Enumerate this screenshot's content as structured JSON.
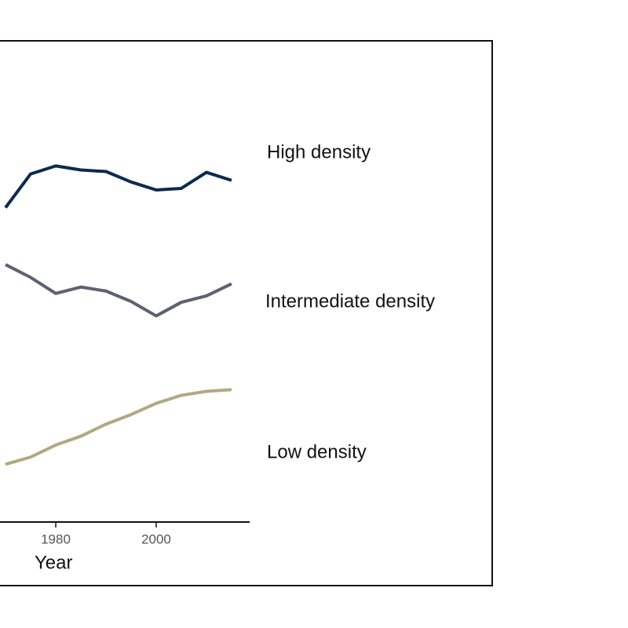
{
  "chart_data": {
    "type": "line",
    "x": [
      1970,
      1975,
      1980,
      1985,
      1990,
      1995,
      2000,
      2005,
      2010,
      2015
    ],
    "series": [
      {
        "name": "High density",
        "color": "#0d2a4e",
        "values": [
          39.2,
          43.4,
          44.4,
          43.9,
          43.7,
          42.4,
          41.4,
          41.6,
          43.6,
          42.6
        ]
      },
      {
        "name": "Intermediate density",
        "color": "#5f6070",
        "values": [
          32.1,
          30.5,
          28.5,
          29.3,
          28.8,
          27.5,
          25.7,
          27.4,
          28.2,
          29.7
        ]
      },
      {
        "name": "Low density",
        "color": "#b0aa84",
        "values": [
          7.2,
          8.1,
          9.6,
          10.7,
          12.2,
          13.4,
          14.8,
          15.8,
          16.3,
          16.5
        ]
      }
    ],
    "xlabel": "Year",
    "xlim": [
      1968.9,
      2018.6
    ],
    "xticks": [
      1980,
      2000
    ],
    "ylim": [
      0,
      60
    ]
  }
}
